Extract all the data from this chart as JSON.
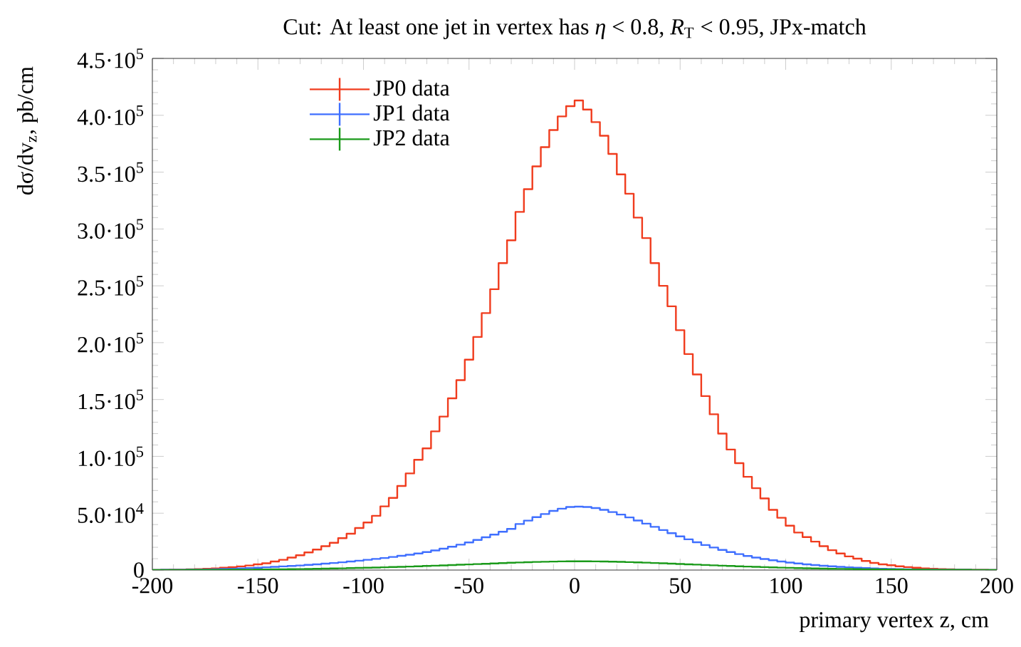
{
  "chart_data": {
    "type": "histogram",
    "title": "Cut: At least one jet in vertex has *η* < 0.8, *R*$_{T}$ < 0.95, JPx-match",
    "xlabel": "primary vertex z, cm",
    "ylabel": "dσ/dv$_{z}$, pb/cm",
    "bins": [
      -200,
      -196,
      -192,
      -188,
      -184,
      -180,
      -176,
      -172,
      -168,
      -164,
      -160,
      -156,
      -152,
      -148,
      -144,
      -140,
      -136,
      -132,
      -128,
      -124,
      -120,
      -116,
      -112,
      -108,
      -104,
      -100,
      -96,
      -92,
      -88,
      -84,
      -80,
      -76,
      -72,
      -68,
      -64,
      -60,
      -56,
      -52,
      -48,
      -44,
      -40,
      -36,
      -32,
      -28,
      -24,
      -20,
      -16,
      -12,
      -8,
      -4,
      0,
      4,
      8,
      12,
      16,
      20,
      24,
      28,
      32,
      36,
      40,
      44,
      48,
      52,
      56,
      60,
      64,
      68,
      72,
      76,
      80,
      84,
      88,
      92,
      96,
      100,
      104,
      108,
      112,
      116,
      120,
      124,
      128,
      132,
      136,
      140,
      144,
      148,
      152,
      156,
      160,
      164,
      168,
      172,
      176,
      180,
      184,
      188,
      192,
      196,
      200
    ],
    "series": [
      {
        "name": "JP0 data",
        "color": "#f03c1e",
        "values": [
          100,
          200,
          300,
          400,
          600,
          800,
          1100,
          1500,
          2000,
          2500,
          3200,
          4000,
          5000,
          6000,
          7500,
          9000,
          11000,
          13000,
          15500,
          18000,
          21000,
          24000,
          28000,
          32000,
          37000,
          41800,
          47700,
          56000,
          63500,
          74000,
          85000,
          97000,
          107000,
          122000,
          135000,
          151000,
          167000,
          185000,
          205000,
          226000,
          247000,
          270000,
          290000,
          315000,
          335000,
          355000,
          372000,
          387000,
          399000,
          408000,
          413000,
          405000,
          394000,
          382000,
          366000,
          348000,
          331000,
          310000,
          292000,
          270000,
          250000,
          232000,
          211000,
          190000,
          172000,
          153000,
          137000,
          120000,
          106000,
          94000,
          82000,
          72000,
          63000,
          53000,
          46000,
          39000,
          33000,
          29000,
          25000,
          21000,
          17500,
          14600,
          12000,
          10000,
          8000,
          6300,
          5000,
          4200,
          3300,
          2600,
          2000,
          1500,
          1100,
          800,
          600,
          400,
          300,
          200,
          150,
          100
        ]
      },
      {
        "name": "JP1 data",
        "color": "#3f6fff",
        "values": [
          100,
          150,
          200,
          250,
          300,
          400,
          500,
          700,
          900,
          1100,
          1400,
          1700,
          2000,
          2400,
          2800,
          3200,
          3600,
          4000,
          4500,
          5000,
          5600,
          6200,
          6800,
          7500,
          8200,
          9000,
          9800,
          10600,
          11500,
          12500,
          13500,
          14600,
          15800,
          17200,
          18800,
          20500,
          22300,
          24300,
          26500,
          28800,
          31200,
          33700,
          36200,
          40500,
          43500,
          46500,
          49300,
          52000,
          54000,
          55500,
          55800,
          55500,
          54500,
          53000,
          51000,
          48800,
          46300,
          43600,
          40800,
          38000,
          35200,
          32400,
          29600,
          27000,
          24400,
          22000,
          19800,
          17700,
          15800,
          14000,
          12400,
          11000,
          9700,
          8600,
          7500,
          6600,
          5800,
          5000,
          4400,
          3800,
          3300,
          2800,
          2400,
          2000,
          1700,
          1400,
          1200,
          1000,
          800,
          650,
          500,
          400,
          300,
          250,
          200,
          150,
          120,
          100,
          80,
          50
        ]
      },
      {
        "name": "JP2 data",
        "color": "#1a9a1a",
        "values": [
          50,
          60,
          80,
          100,
          120,
          150,
          180,
          220,
          260,
          300,
          350,
          400,
          460,
          530,
          600,
          680,
          770,
          870,
          980,
          1100,
          1230,
          1370,
          1520,
          1680,
          1850,
          2030,
          2220,
          2420,
          2630,
          2850,
          3080,
          3320,
          3570,
          3830,
          4100,
          4380,
          4660,
          4950,
          5240,
          5530,
          5820,
          6100,
          6380,
          6640,
          6880,
          7100,
          7300,
          7460,
          7580,
          7650,
          7680,
          7660,
          7600,
          7500,
          7360,
          7180,
          6970,
          6740,
          6490,
          6220,
          5940,
          5650,
          5350,
          5050,
          4750,
          4450,
          4150,
          3860,
          3580,
          3310,
          3050,
          2800,
          2560,
          2340,
          2130,
          1930,
          1750,
          1580,
          1420,
          1280,
          1140,
          1020,
          910,
          810,
          720,
          630,
          560,
          490,
          430,
          370,
          320,
          280,
          240,
          200,
          170,
          140,
          120,
          100,
          80,
          60
        ]
      }
    ],
    "xlim": [
      -200,
      200
    ],
    "ylim": [
      0,
      450000
    ],
    "xticks": [
      -200,
      -150,
      -100,
      -50,
      0,
      50,
      100,
      150,
      200
    ],
    "yticks": [
      0,
      {
        "value": 50000,
        "label": "5.0·10$^{4}$"
      },
      {
        "value": 100000,
        "label": "1.0·10$^{5}$"
      },
      {
        "value": 150000,
        "label": "1.5·10$^{5}$"
      },
      {
        "value": 200000,
        "label": "2.0·10$^{5}$"
      },
      {
        "value": 250000,
        "label": "2.5·10$^{5}$"
      },
      {
        "value": 300000,
        "label": "3.0·10$^{5}$"
      },
      {
        "value": 350000,
        "label": "3.5·10$^{5}$"
      },
      {
        "value": 400000,
        "label": "4.0·10$^{5}$"
      },
      {
        "value": 450000,
        "label": "4.5·10$^{5}$"
      }
    ],
    "legend": "top left"
  }
}
